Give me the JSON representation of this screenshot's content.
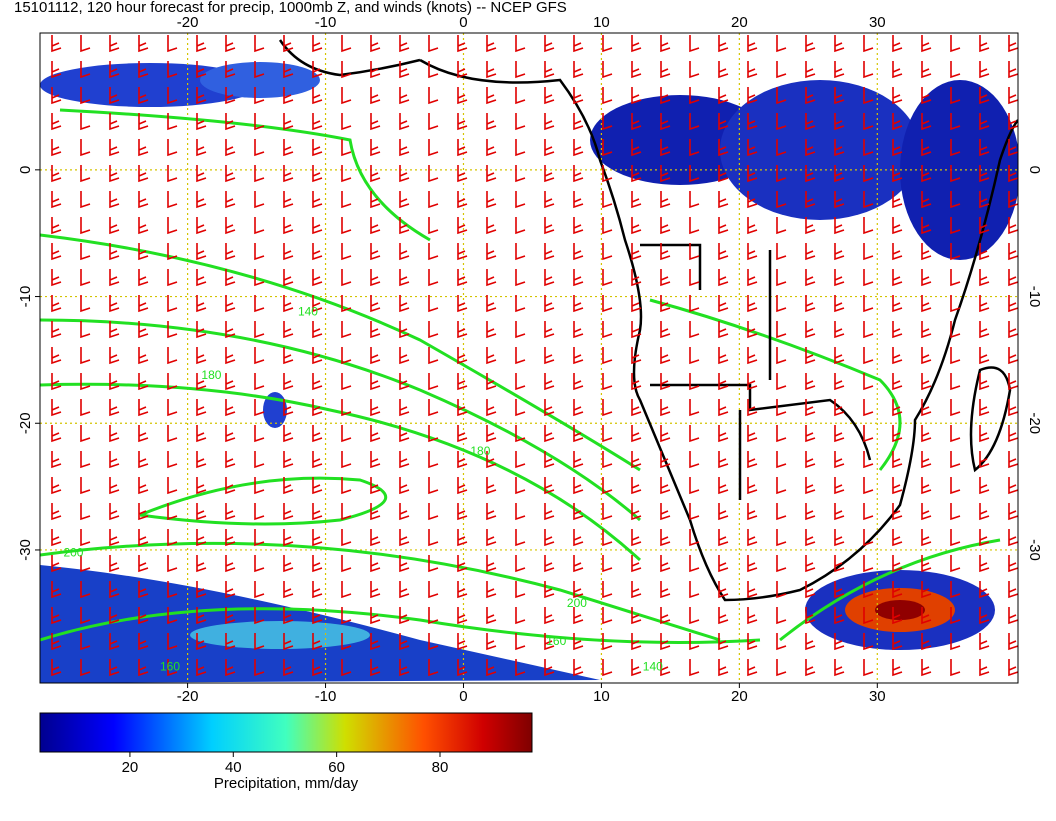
{
  "title": "15101112, 120 hour forecast for precip, 1000mb Z, and winds (knots) -- NCEP GFS",
  "map": {
    "xlim": [
      -30.7,
      40.2
    ],
    "ylim": [
      -40.5,
      10.8
    ],
    "xticks": [
      -20,
      -10,
      0,
      10,
      20,
      30
    ],
    "yticks": [
      0,
      -10,
      -20,
      -30
    ],
    "grid": true,
    "contour_labels": [
      {
        "value": 140,
        "lon": -12,
        "lat": -11.5
      },
      {
        "value": 180,
        "lon": -19,
        "lat": -16.5
      },
      {
        "value": 200,
        "lon": -29,
        "lat": -30.5
      },
      {
        "value": 180,
        "lon": 0.5,
        "lat": -22.5
      },
      {
        "value": 200,
        "lon": 7.5,
        "lat": -34.5
      },
      {
        "value": 160,
        "lon": 6,
        "lat": -37.5
      },
      {
        "value": 140,
        "lon": 13,
        "lat": -39.5
      },
      {
        "value": 160,
        "lon": -22,
        "lat": -39.5
      }
    ]
  },
  "colorbar": {
    "label": "Precipitation, mm/day",
    "lim": [
      2.6,
      97.8
    ],
    "ticks": [
      20,
      40,
      60,
      80
    ]
  }
}
